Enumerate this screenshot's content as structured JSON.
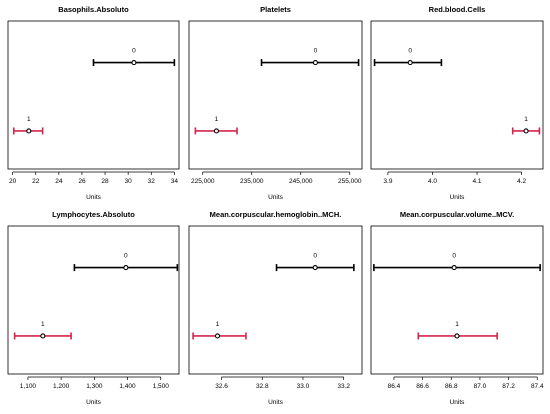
{
  "chart_data": [
    {
      "type": "errorbar",
      "title": "Basophils.Absoluto",
      "xlabel": "Units",
      "xlim": [
        19.6,
        34.4
      ],
      "ticks": [
        20,
        22,
        24,
        26,
        28,
        30,
        32,
        34
      ],
      "tick_labels": [
        "20",
        "22",
        "24",
        "26",
        "28",
        "30",
        "32",
        "34"
      ],
      "series": [
        {
          "name": "0",
          "center": 30.5,
          "low": 27.0,
          "high": 34.0,
          "color": "#000000"
        },
        {
          "name": "1",
          "center": 21.4,
          "low": 20.1,
          "high": 22.6,
          "color": "#d5244d"
        }
      ]
    },
    {
      "type": "errorbar",
      "title": "Platelets",
      "xlabel": "Units",
      "xlim": [
        222200,
        257500
      ],
      "ticks": [
        225000,
        235000,
        245000,
        255000
      ],
      "tick_labels": [
        "225,000",
        "235,000",
        "245,000",
        "255,000"
      ],
      "series": [
        {
          "name": "0",
          "center": 248000,
          "low": 237000,
          "high": 256800,
          "color": "#000000"
        },
        {
          "name": "1",
          "center": 227800,
          "low": 223500,
          "high": 232000,
          "color": "#d5244d"
        }
      ]
    },
    {
      "type": "errorbar",
      "title": "Red.blood.Cells",
      "xlabel": "Units",
      "xlim": [
        3.862,
        4.248
      ],
      "ticks": [
        3.9,
        4.0,
        4.1,
        4.2
      ],
      "tick_labels": [
        "3.9",
        "4.0",
        "4.1",
        "4.2"
      ],
      "series": [
        {
          "name": "0",
          "center": 3.95,
          "low": 3.87,
          "high": 4.02,
          "color": "#000000"
        },
        {
          "name": "1",
          "center": 4.21,
          "low": 4.18,
          "high": 4.24,
          "color": "#d5244d"
        }
      ]
    },
    {
      "type": "errorbar",
      "title": "Lymphocytes.Absoluto",
      "xlabel": "Units",
      "xlim": [
        1040,
        1555
      ],
      "ticks": [
        1100,
        1200,
        1300,
        1400,
        1500
      ],
      "tick_labels": [
        "1,100",
        "1,200",
        "1,300",
        "1,400",
        "1,500"
      ],
      "series": [
        {
          "name": "0",
          "center": 1395,
          "low": 1240,
          "high": 1550,
          "color": "#000000"
        },
        {
          "name": "1",
          "center": 1145,
          "low": 1060,
          "high": 1230,
          "color": "#d5244d"
        }
      ]
    },
    {
      "type": "errorbar",
      "title": "Mean.corpuscular.hemoglobin..MCH.",
      "xlabel": "Units",
      "xlim": [
        32.44,
        33.29
      ],
      "ticks": [
        32.6,
        32.8,
        33.0,
        33.2
      ],
      "tick_labels": [
        "32.6",
        "32.8",
        "33.0",
        "33.2"
      ],
      "series": [
        {
          "name": "0",
          "center": 33.06,
          "low": 32.87,
          "high": 33.25,
          "color": "#000000"
        },
        {
          "name": "1",
          "center": 32.58,
          "low": 32.46,
          "high": 32.72,
          "color": "#d5244d"
        }
      ]
    },
    {
      "type": "errorbar",
      "title": "Mean.corpuscular.volume..MCV.",
      "xlabel": "Units",
      "xlim": [
        86.24,
        87.44
      ],
      "ticks": [
        86.4,
        86.6,
        86.8,
        87.0,
        87.2,
        87.4
      ],
      "tick_labels": [
        "86.4",
        "86.6",
        "86.8",
        "87.0",
        "87.2",
        "87.4"
      ],
      "series": [
        {
          "name": "0",
          "center": 86.82,
          "low": 86.26,
          "high": 87.42,
          "color": "#000000"
        },
        {
          "name": "1",
          "center": 86.84,
          "low": 86.57,
          "high": 87.12,
          "color": "#d5244d"
        }
      ]
    }
  ]
}
